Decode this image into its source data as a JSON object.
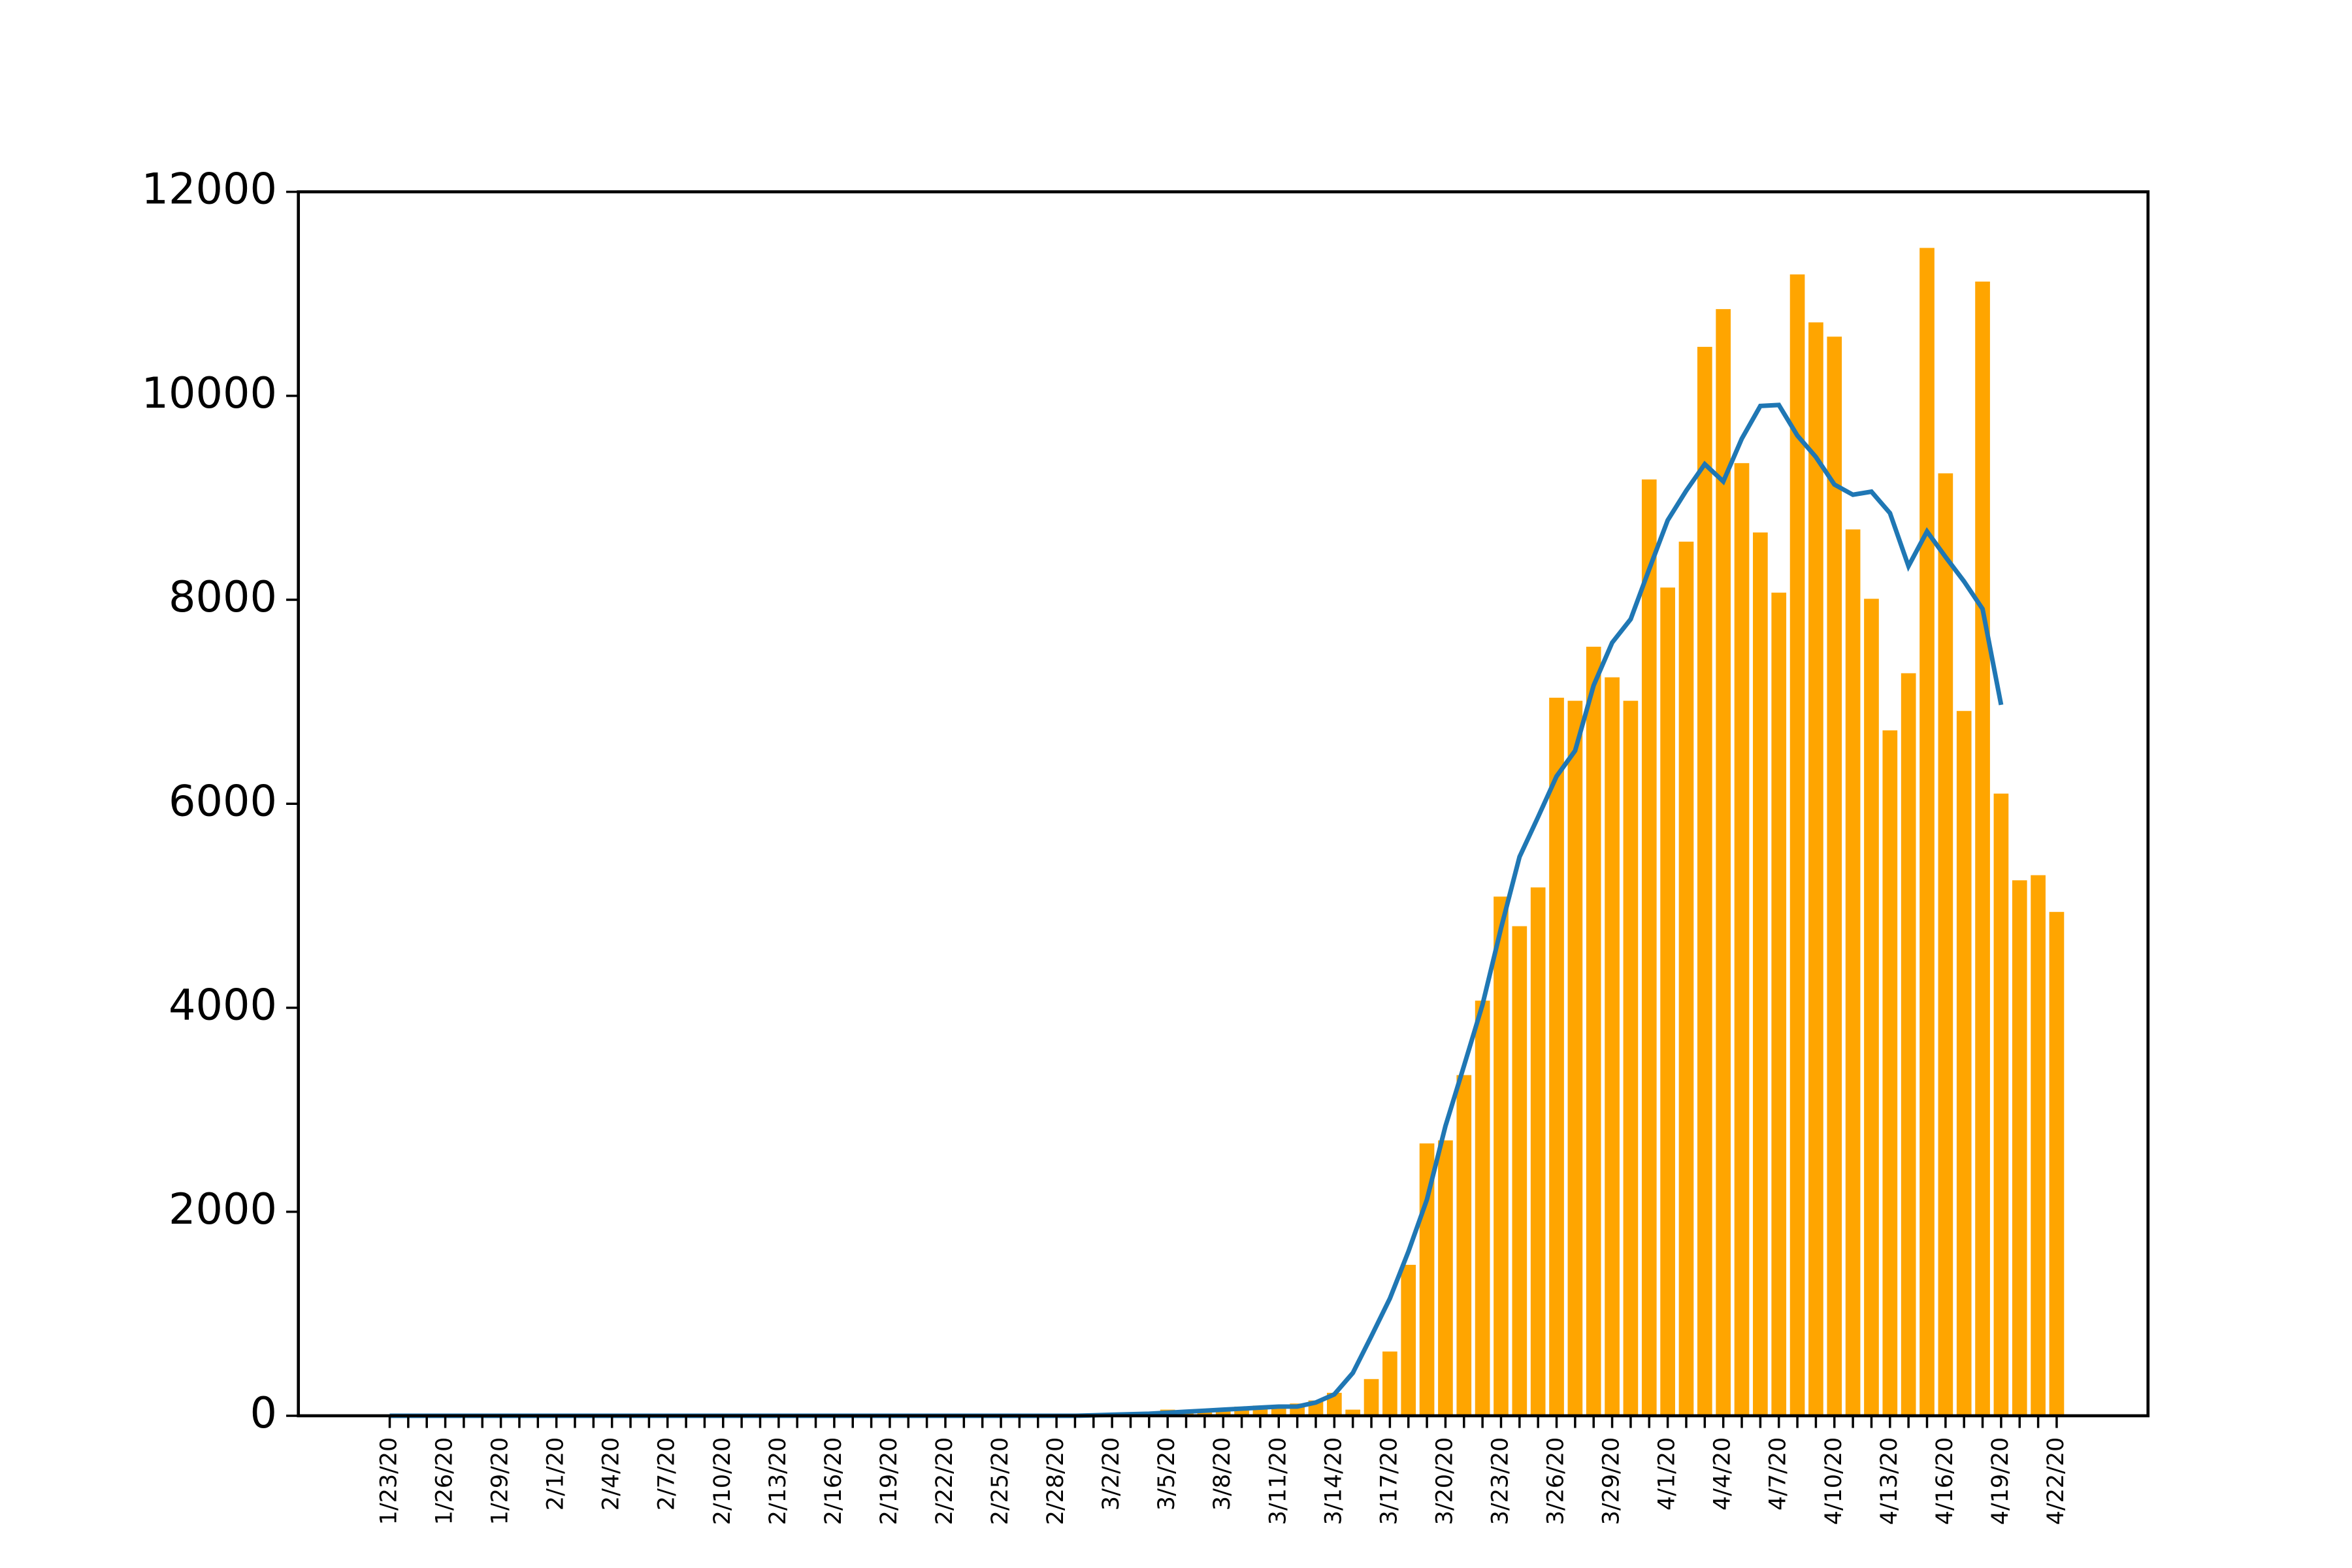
{
  "chart_data": {
    "type": "bar",
    "categories": [
      "1/23/20",
      null,
      null,
      "1/26/20",
      null,
      null,
      "1/29/20",
      null,
      null,
      "2/1/20",
      null,
      null,
      "2/4/20",
      null,
      null,
      "2/7/20",
      null,
      null,
      "2/10/20",
      null,
      null,
      "2/13/20",
      null,
      null,
      "2/16/20",
      null,
      null,
      "2/19/20",
      null,
      null,
      "2/22/20",
      null,
      null,
      "2/25/20",
      null,
      null,
      "2/28/20",
      null,
      null,
      "3/2/20",
      null,
      null,
      "3/5/20",
      null,
      null,
      "3/8/20",
      null,
      null,
      "3/11/20",
      null,
      null,
      "3/14/20",
      null,
      null,
      "3/17/20",
      null,
      null,
      "3/20/20",
      null,
      null,
      "3/23/20",
      null,
      null,
      "3/26/20",
      null,
      null,
      "3/29/20",
      null,
      null,
      "4/1/20",
      null,
      null,
      "4/4/20",
      null,
      null,
      "4/7/20",
      null,
      null,
      "4/10/20",
      null,
      null,
      "4/13/20",
      null,
      null,
      "4/16/20",
      null,
      null,
      "4/19/20",
      null,
      null,
      "4/22/20"
    ],
    "series": [
      {
        "type": "bar",
        "color": "#ffa500",
        "values": [
          0,
          0,
          0,
          0,
          0,
          0,
          0,
          0,
          0,
          0,
          0,
          0,
          0,
          0,
          0,
          0,
          0,
          0,
          0,
          0,
          0,
          0,
          0,
          0,
          0,
          0,
          0,
          0,
          0,
          0,
          0,
          0,
          0,
          0,
          0,
          0,
          0,
          0,
          8,
          20,
          25,
          30,
          60,
          50,
          60,
          70,
          90,
          100,
          90,
          120,
          150,
          225,
          60,
          360,
          630,
          1480,
          2670,
          2700,
          3340,
          4070,
          5090,
          4800,
          5180,
          7040,
          7010,
          7540,
          7240,
          7010,
          9180,
          8120,
          8570,
          10480,
          10850,
          9340,
          8660,
          8070,
          11190,
          10720,
          10580,
          8690,
          8010,
          6720,
          7280,
          11450,
          9240,
          6910,
          11120,
          6100,
          5250,
          5300,
          4940
        ]
      },
      {
        "type": "line",
        "color": "#1f77b4",
        "values": [
          0,
          0,
          0,
          0,
          0,
          0,
          0,
          0,
          0,
          0,
          0,
          0,
          0,
          0,
          0,
          0,
          0,
          0,
          0,
          0,
          0,
          0,
          0,
          0,
          0,
          0,
          0,
          0,
          0,
          0,
          0,
          0,
          0,
          0,
          0,
          0,
          0,
          0,
          5,
          10,
          15,
          20,
          30,
          40,
          50,
          60,
          70,
          80,
          90,
          90,
          130,
          210,
          420,
          780,
          1150,
          1610,
          2120,
          2840,
          3430,
          4030,
          4780,
          5480,
          5870,
          6270,
          6520,
          7160,
          7580,
          7810,
          8300,
          8780,
          9070,
          9330,
          9160,
          9580,
          9900,
          9910,
          9610,
          9400,
          9130,
          9030,
          9060,
          8850,
          8330,
          8670,
          8420,
          8180,
          7910,
          6970,
          null,
          null,
          null
        ]
      }
    ],
    "ylim": [
      0,
      12000
    ],
    "yticks": [
      0,
      2000,
      4000,
      6000,
      8000,
      10000,
      12000
    ]
  }
}
